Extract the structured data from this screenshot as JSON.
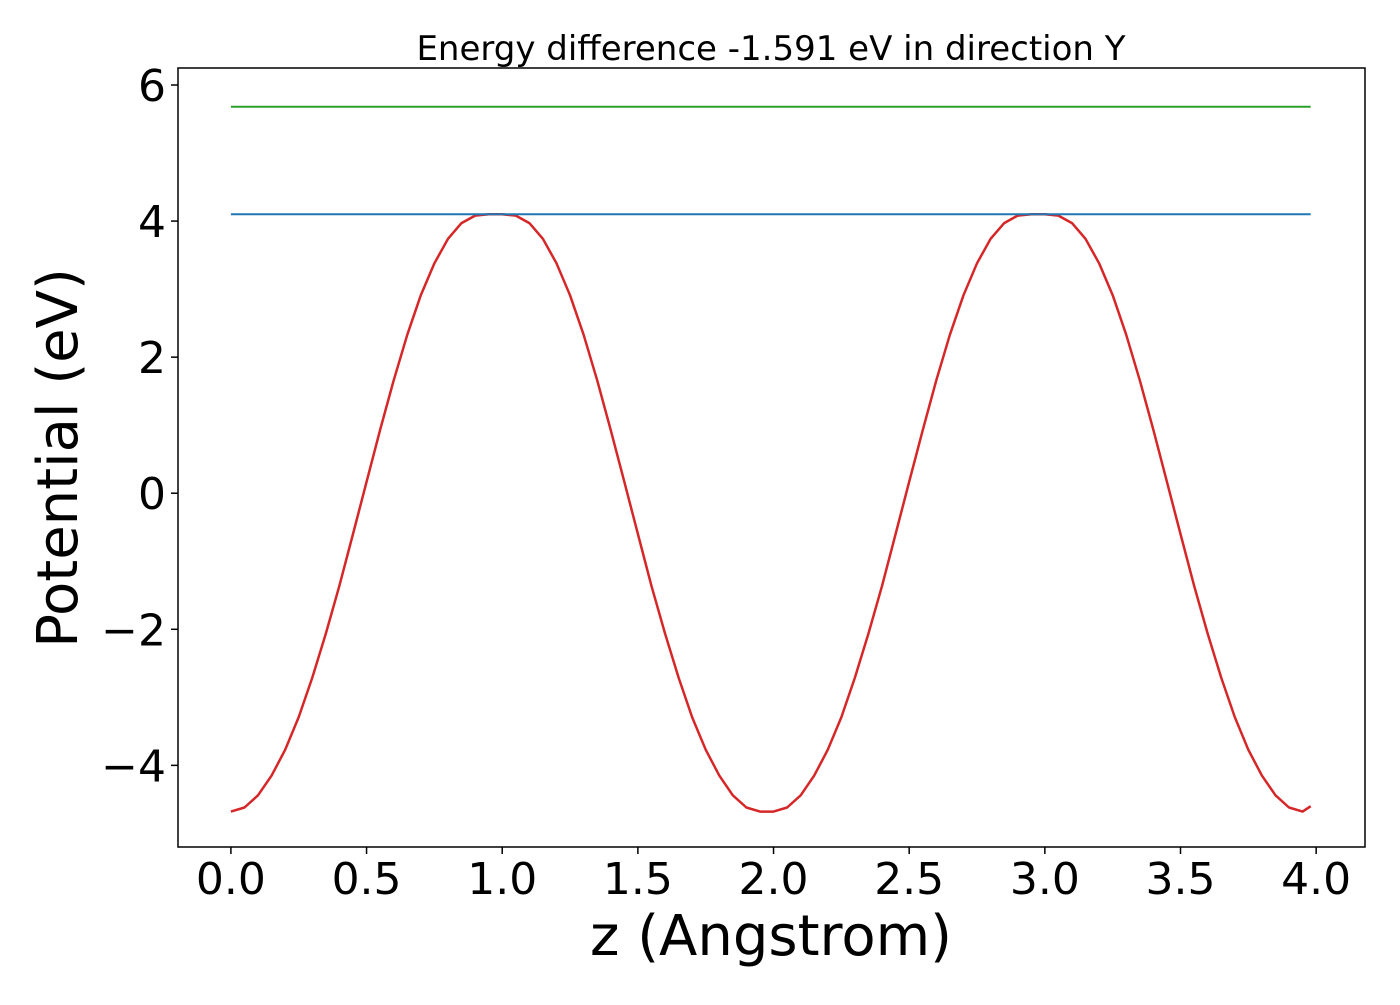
{
  "chart_data": {
    "type": "line",
    "title": "Energy difference -1.591 eV in direction Y",
    "xlabel": "z (Angstrom)",
    "ylabel": "Potential (eV)",
    "xlim": [
      -0.195,
      4.18
    ],
    "ylim": [
      -5.2,
      6.25
    ],
    "x_ticks": [
      0.0,
      0.5,
      1.0,
      1.5,
      2.0,
      2.5,
      3.0,
      3.5,
      4.0
    ],
    "x_tick_labels": [
      "0.0",
      "0.5",
      "1.0",
      "1.5",
      "2.0",
      "2.5",
      "3.0",
      "3.5",
      "4.0"
    ],
    "y_ticks": [
      -4,
      -2,
      0,
      2,
      4,
      6
    ],
    "y_tick_labels": [
      "−4",
      "−2",
      "0",
      "2",
      "4",
      "6"
    ],
    "grid": false,
    "legend": "none",
    "series": [
      {
        "color": "#d62728",
        "style": "potential-curve",
        "x": [
          0.0,
          0.05,
          0.1,
          0.15,
          0.2,
          0.25,
          0.3,
          0.35,
          0.4,
          0.45,
          0.5,
          0.55,
          0.6,
          0.65,
          0.7,
          0.75,
          0.8,
          0.85,
          0.9,
          0.95,
          1.0,
          1.05,
          1.1,
          1.15,
          1.2,
          1.25,
          1.3,
          1.35,
          1.4,
          1.45,
          1.5,
          1.55,
          1.6,
          1.65,
          1.7,
          1.75,
          1.8,
          1.85,
          1.9,
          1.95,
          2.0,
          2.05,
          2.1,
          2.15,
          2.2,
          2.25,
          2.3,
          2.35,
          2.4,
          2.45,
          2.5,
          2.55,
          2.6,
          2.65,
          2.7,
          2.75,
          2.8,
          2.85,
          2.9,
          2.95,
          3.0,
          3.05,
          3.1,
          3.15,
          3.2,
          3.25,
          3.3,
          3.35,
          3.4,
          3.45,
          3.5,
          3.55,
          3.6,
          3.65,
          3.7,
          3.75,
          3.8,
          3.85,
          3.9,
          3.95,
          3.98
        ],
        "y": [
          -4.68,
          -4.62,
          -4.44,
          -4.15,
          -3.77,
          -3.29,
          -2.71,
          -2.06,
          -1.36,
          -0.6,
          0.17,
          0.93,
          1.66,
          2.33,
          2.91,
          3.38,
          3.74,
          3.97,
          4.08,
          4.1,
          4.1,
          4.08,
          3.97,
          3.74,
          3.38,
          2.91,
          2.33,
          1.66,
          0.93,
          0.17,
          -0.6,
          -1.36,
          -2.06,
          -2.71,
          -3.29,
          -3.77,
          -4.15,
          -4.44,
          -4.62,
          -4.68,
          -4.68,
          -4.62,
          -4.44,
          -4.15,
          -3.77,
          -3.29,
          -2.71,
          -2.06,
          -1.36,
          -0.6,
          0.17,
          0.93,
          1.66,
          2.33,
          2.91,
          3.38,
          3.74,
          3.97,
          4.08,
          4.1,
          4.1,
          4.08,
          3.97,
          3.74,
          3.38,
          2.91,
          2.33,
          1.66,
          0.93,
          0.17,
          -0.6,
          -1.36,
          -2.06,
          -2.71,
          -3.29,
          -3.77,
          -4.15,
          -4.44,
          -4.62,
          -4.68,
          -4.6
        ]
      },
      {
        "color": "#1f77b4",
        "style": "flat-line",
        "x": [
          0.0,
          3.98
        ],
        "y": [
          4.1,
          4.1
        ]
      },
      {
        "color": "#2ca02c",
        "style": "flat-line",
        "x": [
          0.0,
          3.98
        ],
        "y": [
          5.68,
          5.68
        ]
      }
    ]
  }
}
